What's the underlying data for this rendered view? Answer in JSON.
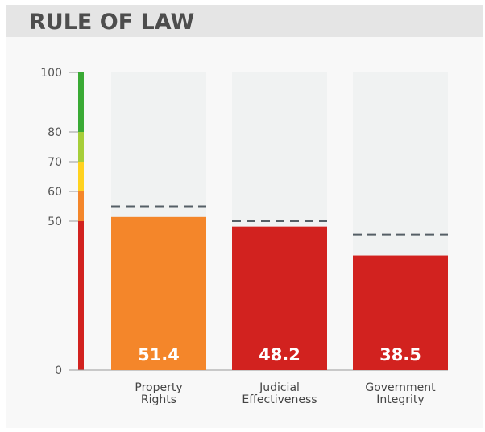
{
  "title": "RULE OF LAW",
  "chart_data": {
    "type": "bar",
    "categories": [
      [
        "Property",
        "Rights"
      ],
      [
        "Judicial",
        "Effectiveness"
      ],
      [
        "Government",
        "Integrity"
      ]
    ],
    "values": [
      51.4,
      48.2,
      38.5
    ],
    "value_labels": [
      "51.4",
      "48.2",
      "38.5"
    ],
    "reference_values": [
      55.0,
      50.0,
      45.5
    ],
    "bar_colors": [
      "#f4862a",
      "#d2221f",
      "#d2221f"
    ],
    "track_color": "#f0f2f2",
    "reference_line": "dashed",
    "ylim": [
      0,
      100
    ],
    "yticks": [
      0,
      50,
      60,
      70,
      80,
      100
    ],
    "scale_bands": [
      {
        "from": 0,
        "to": 50,
        "color": "#d2221f"
      },
      {
        "from": 50,
        "to": 60,
        "color": "#f4862a"
      },
      {
        "from": 60,
        "to": 70,
        "color": "#ffd21f"
      },
      {
        "from": 70,
        "to": 80,
        "color": "#a6ce39"
      },
      {
        "from": 80,
        "to": 100,
        "color": "#3aaa35"
      }
    ],
    "grid": false,
    "xlabel": "",
    "ylabel": ""
  }
}
